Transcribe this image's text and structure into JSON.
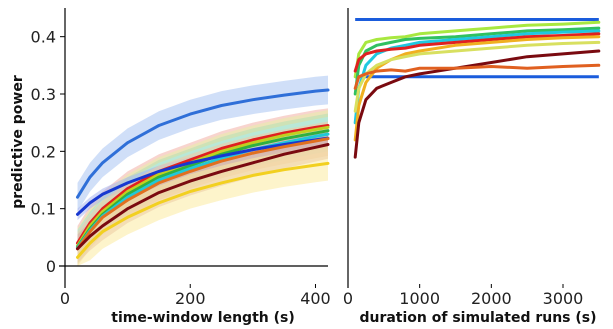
{
  "chart_data": [
    {
      "type": "line",
      "xlabel": "time-window length (s)",
      "ylabel": "predictive power",
      "xlim": [
        0,
        420
      ],
      "ylim": [
        0,
        0.45
      ],
      "xticks": [
        0,
        200,
        400
      ],
      "yticks": [
        0,
        0.1,
        0.2,
        0.3,
        0.4
      ],
      "x": [
        20,
        40,
        60,
        100,
        150,
        200,
        250,
        300,
        350,
        400,
        420
      ],
      "series": [
        {
          "color": "#2f6fd8",
          "band": "#a9c4f2",
          "band_width": 0.025,
          "values": [
            0.12,
            0.155,
            0.18,
            0.215,
            0.245,
            0.265,
            0.28,
            0.29,
            0.298,
            0.305,
            0.307
          ]
        },
        {
          "color": "#e02020",
          "band": "#f3b0a6",
          "band_width": 0.03,
          "values": [
            0.04,
            0.075,
            0.1,
            0.135,
            0.165,
            0.185,
            0.205,
            0.22,
            0.232,
            0.242,
            0.245
          ]
        },
        {
          "color": "#c0d020",
          "band": "#e6efa8",
          "band_width": 0.03,
          "values": [
            0.035,
            0.07,
            0.095,
            0.13,
            0.16,
            0.18,
            0.2,
            0.215,
            0.228,
            0.238,
            0.242
          ]
        },
        {
          "color": "#30b040",
          "band": "#b4e2b4",
          "band_width": 0.03,
          "values": [
            0.033,
            0.065,
            0.09,
            0.125,
            0.155,
            0.175,
            0.195,
            0.21,
            0.222,
            0.232,
            0.236
          ]
        },
        {
          "color": "#20c8d8",
          "band": "#a8ecf2",
          "band_width": 0.03,
          "values": [
            0.032,
            0.062,
            0.087,
            0.12,
            0.15,
            0.17,
            0.188,
            0.203,
            0.215,
            0.226,
            0.23
          ]
        },
        {
          "color": "#1838d0",
          "band": "#a8b4ee",
          "band_width": 0.01,
          "values": [
            0.09,
            0.11,
            0.125,
            0.145,
            0.165,
            0.18,
            0.192,
            0.203,
            0.212,
            0.22,
            0.223
          ]
        },
        {
          "color": "#e07020",
          "band": "#f6c8a0",
          "band_width": 0.03,
          "values": [
            0.03,
            0.06,
            0.085,
            0.115,
            0.145,
            0.165,
            0.183,
            0.197,
            0.208,
            0.218,
            0.222
          ]
        },
        {
          "color": "#7a0a10",
          "band": "#d8a8a8",
          "band_width": 0.025,
          "values": [
            0.03,
            0.052,
            0.07,
            0.1,
            0.128,
            0.148,
            0.165,
            0.18,
            0.195,
            0.207,
            0.212
          ]
        },
        {
          "color": "#f2d020",
          "band": "#fbeba0",
          "band_width": 0.03,
          "values": [
            0.015,
            0.04,
            0.06,
            0.085,
            0.11,
            0.13,
            0.145,
            0.158,
            0.168,
            0.176,
            0.179
          ]
        }
      ]
    },
    {
      "type": "line",
      "xlabel": "duration of simulated runs (s)",
      "ylabel": "",
      "xlim": [
        0,
        3600
      ],
      "ylim": [
        0,
        0.45
      ],
      "xticks": [
        0,
        1000,
        2000,
        3000
      ],
      "x": [
        100,
        150,
        250,
        400,
        600,
        800,
        1000,
        1500,
        2000,
        2500,
        3000,
        3500
      ],
      "reference_lines": [
        {
          "color": "#1a5cdc",
          "y": 0.43,
          "x_from": 100,
          "x_to": 3500
        },
        {
          "color": "#1a5cdc",
          "y": 0.33,
          "x_from": 100,
          "x_to": 3500
        }
      ],
      "series": [
        {
          "color": "#a8e840",
          "values": [
            0.33,
            0.37,
            0.39,
            0.395,
            0.398,
            0.4,
            0.405,
            0.41,
            0.415,
            0.42,
            0.422,
            0.425
          ]
        },
        {
          "color": "#30c060",
          "values": [
            0.3,
            0.35,
            0.375,
            0.385,
            0.39,
            0.395,
            0.397,
            0.4,
            0.405,
            0.41,
            0.412,
            0.415
          ]
        },
        {
          "color": "#20c8e0",
          "values": [
            0.25,
            0.31,
            0.35,
            0.37,
            0.38,
            0.385,
            0.39,
            0.395,
            0.4,
            0.405,
            0.408,
            0.41
          ]
        },
        {
          "color": "#e02020",
          "values": [
            0.34,
            0.36,
            0.37,
            0.375,
            0.378,
            0.38,
            0.385,
            0.39,
            0.395,
            0.4,
            0.402,
            0.405
          ]
        },
        {
          "color": "#f0b020",
          "values": [
            0.22,
            0.28,
            0.32,
            0.345,
            0.36,
            0.37,
            0.375,
            0.385,
            0.39,
            0.395,
            0.398,
            0.4
          ]
        },
        {
          "color": "#d8e060",
          "values": [
            0.27,
            0.31,
            0.335,
            0.35,
            0.36,
            0.365,
            0.37,
            0.375,
            0.38,
            0.385,
            0.388,
            0.39
          ]
        },
        {
          "color": "#7a0a10",
          "values": [
            0.19,
            0.25,
            0.29,
            0.31,
            0.32,
            0.33,
            0.335,
            0.345,
            0.355,
            0.365,
            0.37,
            0.375
          ]
        },
        {
          "color": "#e06020",
          "values": [
            0.31,
            0.33,
            0.335,
            0.34,
            0.342,
            0.34,
            0.345,
            0.345,
            0.348,
            0.345,
            0.348,
            0.35
          ]
        }
      ]
    }
  ]
}
